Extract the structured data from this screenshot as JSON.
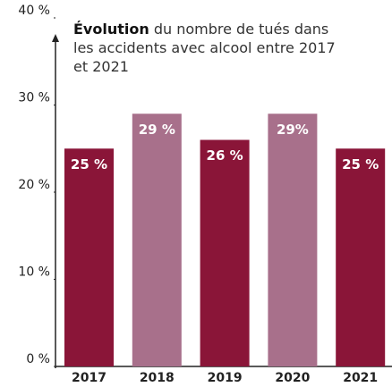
{
  "chart_data": {
    "type": "bar",
    "title_bold": "Évolution",
    "title": "du nombre de tués dans les accidents avec alcool entre 2017 et 2021",
    "categories": [
      "2017",
      "2018",
      "2019",
      "2020",
      "2021"
    ],
    "values": [
      25,
      29,
      26,
      29,
      25
    ],
    "value_labels": [
      "25 %",
      "29 %",
      "26 %",
      "29%",
      "25 %"
    ],
    "colors": [
      "#8a1538",
      "#a8708b",
      "#8a1538",
      "#a8708b",
      "#8a1538"
    ],
    "ylim": [
      0,
      40
    ],
    "yticks": [
      {
        "value": 0,
        "label": "0 %"
      },
      {
        "value": 10,
        "label": "10 %"
      },
      {
        "value": 20,
        "label": "20 %"
      },
      {
        "value": 30,
        "label": "30 %"
      },
      {
        "value": 40,
        "label": "40 %"
      }
    ],
    "grid": false
  }
}
